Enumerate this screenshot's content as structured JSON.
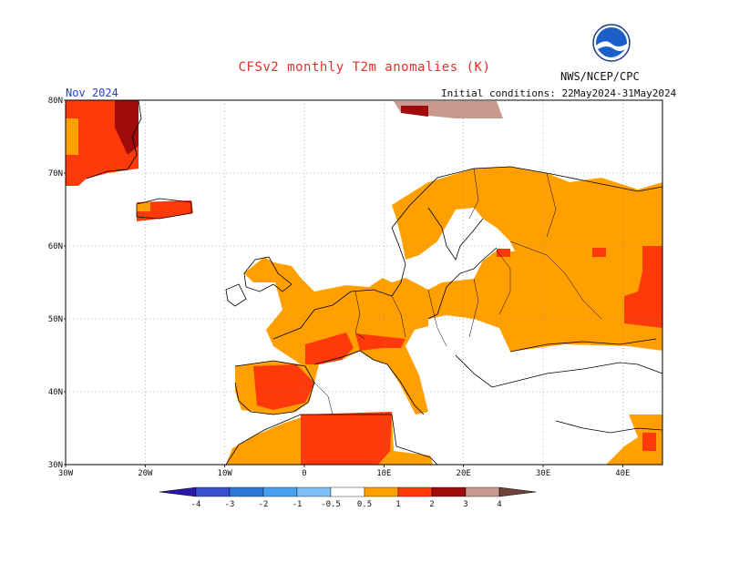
{
  "header": {
    "title": "CFSv2 monthly T2m anomalies (K)",
    "agency": "NWS/NCEP/CPC",
    "month": "Nov 2024",
    "initial_conditions": "Initial conditions: 22May2024-31May2024"
  },
  "logo": {
    "name": "noaa-logo",
    "text": "NOAA"
  },
  "map": {
    "lat_labels": [
      "80N",
      "70N",
      "60N",
      "50N",
      "40N",
      "30N"
    ],
    "lon_labels": [
      "30W",
      "20W",
      "10W",
      "0",
      "10E",
      "20E",
      "30E",
      "40E"
    ],
    "lat_range": [
      30,
      80
    ],
    "lon_range": [
      -30,
      45
    ],
    "grid": "dotted"
  },
  "colorbar": {
    "labels": [
      "-4",
      "-3",
      "-2",
      "-1",
      "-0.5",
      "0.5",
      "1",
      "2",
      "3",
      "4"
    ],
    "colors": [
      "#2a18a8",
      "#3a4fd0",
      "#2a78d8",
      "#4aa0f0",
      "#80c0f8",
      "#ffffff",
      "#ffa000",
      "#ff3a0a",
      "#a00c0c",
      "#c89a8e",
      "#6e4438"
    ]
  }
}
